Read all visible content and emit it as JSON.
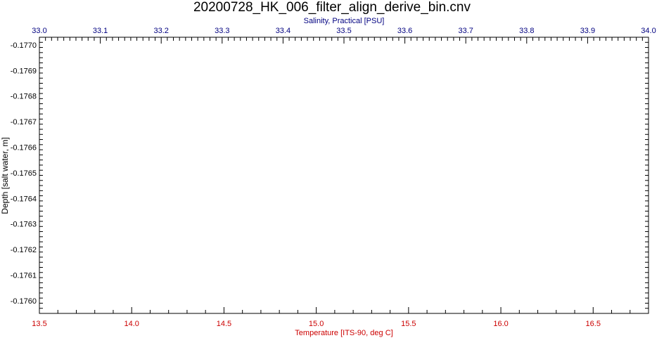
{
  "chart_data": {
    "type": "line",
    "title": "20200728_HK_006_filter_align_derive_bin.cnv",
    "x_top": {
      "label": "Salinity, Practical [PSU]",
      "range": [
        33.0,
        34.0
      ],
      "ticks": [
        "33.0",
        "33.1",
        "33.2",
        "33.3",
        "33.4",
        "33.5",
        "33.6",
        "33.7",
        "33.8",
        "33.9",
        "34.0"
      ],
      "color": "#000080"
    },
    "x_bottom": {
      "label": "Temperature [ITS-90, deg C]",
      "range": [
        13.5,
        16.8
      ],
      "ticks": [
        "13.5",
        "14.0",
        "14.5",
        "15.0",
        "15.5",
        "16.0",
        "16.5"
      ],
      "color": "#cc0000"
    },
    "y": {
      "label": "Depth [salt water, m]",
      "range": [
        -0.17703,
        -0.17595
      ],
      "inverted": true,
      "ticks": [
        "-0.1770",
        "-0.1769",
        "-0.1768",
        "-0.1767",
        "-0.1766",
        "-0.1765",
        "-0.1764",
        "-0.1763",
        "-0.1762",
        "-0.1761",
        "-0.1760"
      ],
      "color": "#000000"
    },
    "series": [],
    "grid": false
  }
}
